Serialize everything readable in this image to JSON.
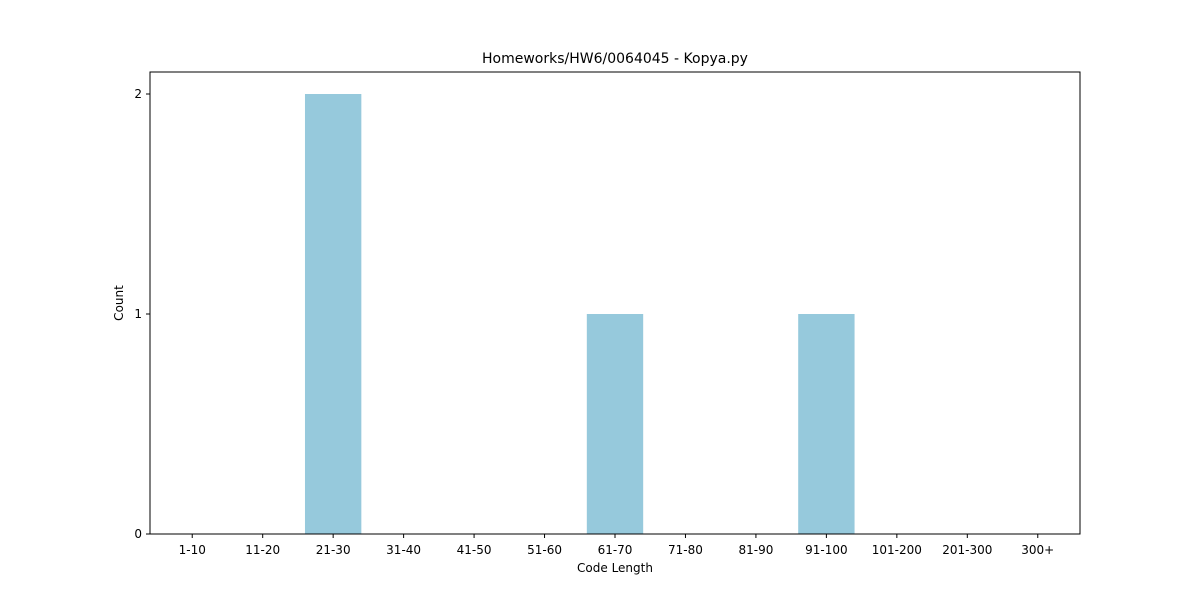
{
  "chart_data": {
    "type": "bar",
    "title": "Homeworks/HW6/0064045 - Kopya.py",
    "xlabel": "Code Length",
    "ylabel": "Count",
    "categories": [
      "1-10",
      "11-20",
      "21-30",
      "31-40",
      "41-50",
      "51-60",
      "61-70",
      "71-80",
      "81-90",
      "91-100",
      "101-200",
      "201-300",
      "300+"
    ],
    "values": [
      0,
      0,
      2,
      0,
      0,
      0,
      1,
      0,
      0,
      1,
      0,
      0,
      0
    ],
    "ylim": [
      0,
      2.1
    ],
    "yticks": [
      0,
      1,
      2
    ],
    "bar_color": "#96c9dc",
    "grid": false,
    "legend": "none"
  }
}
